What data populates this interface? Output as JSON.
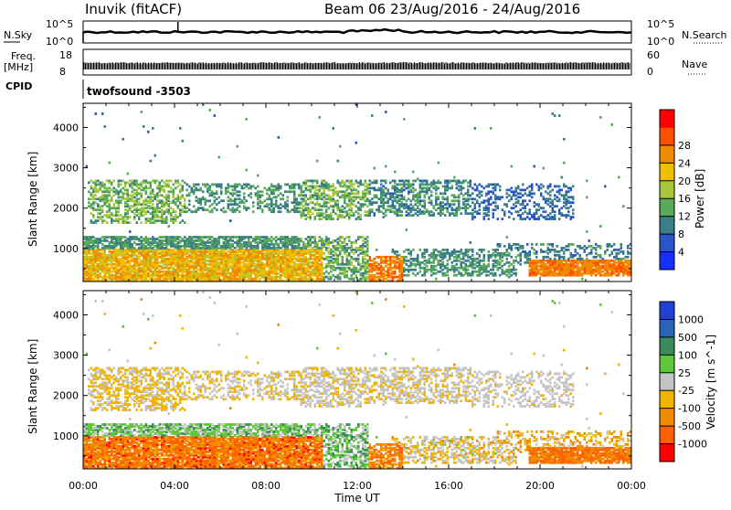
{
  "header": {
    "station": "Inuvik (fitACF)",
    "beam_date": "Beam 06 23/Aug/2016 - 24/Aug/2016"
  },
  "strips": {
    "nsky_label": "N.Sky",
    "nsky_ticks": [
      "10^5",
      "10^0"
    ],
    "nsearch_label": "N.Search",
    "nsearch_ticks": [
      "10^5",
      "10^0"
    ],
    "freq_label": "Freq.",
    "freq_unit": "[MHz]",
    "freq_ticks": [
      "18",
      "8"
    ],
    "nave_label": "Nave",
    "nave_ticks": [
      "60",
      "0"
    ],
    "cpid_label": "CPID",
    "cpid_value": "twofsound -3503"
  },
  "axes": {
    "ylabel": "Slant Range [km]",
    "xlabel": "Time UT",
    "xticks": [
      "00:00",
      "04:00",
      "08:00",
      "12:00",
      "16:00",
      "20:00",
      "00:00"
    ],
    "yticks": [
      "1000",
      "2000",
      "3000",
      "4000"
    ]
  },
  "chart_data": [
    {
      "type": "heatmap",
      "title": "",
      "xlabel": "Time UT",
      "ylabel": "Slant Range [km]",
      "xlim": [
        0,
        24
      ],
      "ylim": [
        180,
        4600
      ],
      "colorbar": {
        "label": "Power [dB]",
        "ticks": [
          "4",
          "8",
          "12",
          "16",
          "20",
          "24",
          "28"
        ],
        "levels": [
          0,
          4,
          8,
          12,
          16,
          20,
          24,
          28,
          32
        ],
        "colors": [
          "#1630ff",
          "#2a55c8",
          "#3a7f88",
          "#58aa58",
          "#a8c83a",
          "#f0c000",
          "#f08a00",
          "#ff5000",
          "#ff0000"
        ]
      }
    },
    {
      "type": "heatmap",
      "title": "",
      "xlabel": "Time UT",
      "ylabel": "Slant Range [km]",
      "xlim": [
        0,
        24
      ],
      "ylim": [
        180,
        4600
      ],
      "colorbar": {
        "label": "Velocity [m s^-1]",
        "ticks": [
          "1000",
          "500",
          "100",
          "25",
          "-25",
          "-100",
          "-500",
          "-1000"
        ],
        "colors": [
          "#2040d8",
          "#2a64b8",
          "#3a8a5a",
          "#5fc83a",
          "#c4c4c4",
          "#f0b400",
          "#f08a00",
          "#ff6000",
          "#ff0000"
        ]
      }
    }
  ]
}
